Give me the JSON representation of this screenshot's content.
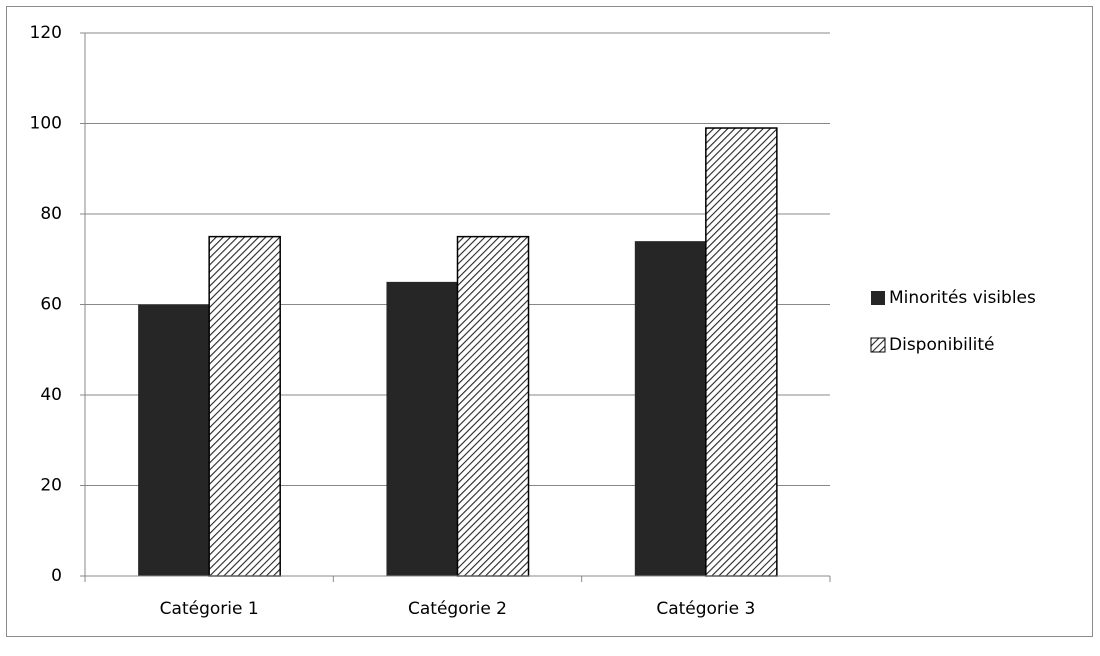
{
  "chart_data": {
    "type": "bar",
    "categories": [
      "Catégorie 1",
      "Catégorie 2",
      "Catégorie 3"
    ],
    "series": [
      {
        "name": "Minorités visibles",
        "color": "#262626",
        "values": [
          60,
          65,
          74
        ]
      },
      {
        "name": "Disponibilité",
        "color": "#262626",
        "pattern": "hatch",
        "values": [
          75,
          75,
          99
        ]
      }
    ],
    "ylim": [
      0,
      120
    ],
    "yticks": [
      0,
      20,
      40,
      60,
      80,
      100,
      120
    ],
    "grid": true,
    "legend": "right"
  }
}
